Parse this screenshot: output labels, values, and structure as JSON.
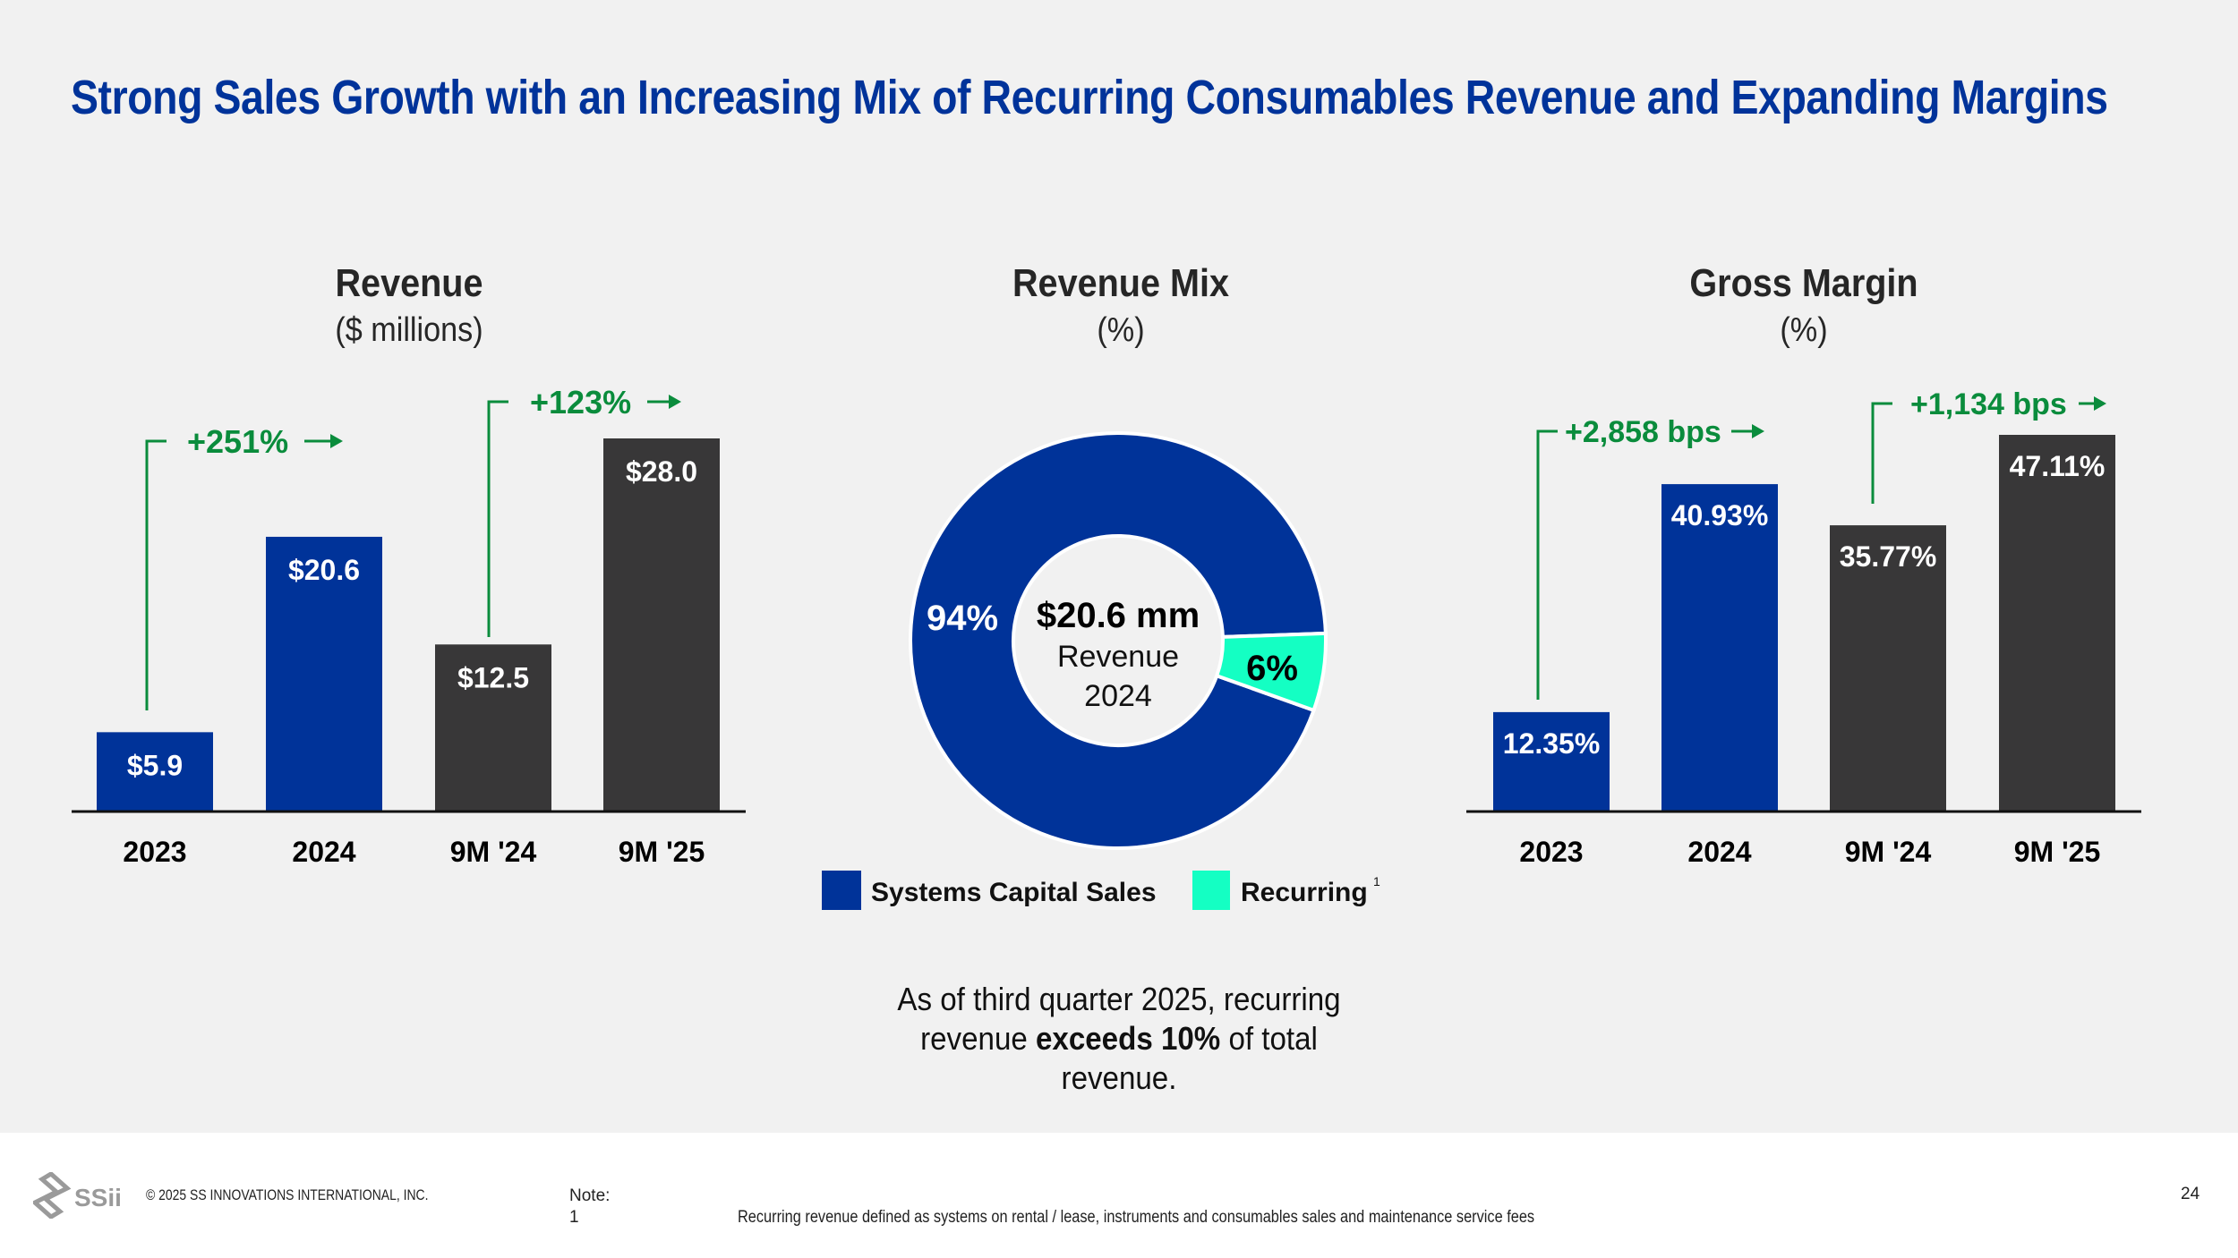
{
  "title": "Strong Sales Growth with an Increasing Mix of Recurring Consumables Revenue and Expanding Margins",
  "colors": {
    "title": "#00339a",
    "blue_bar": "#003399",
    "dark_bar": "#383738",
    "recurring": "#14ffc3",
    "growth_green": "#0a8c3c",
    "background": "#f1f1f1"
  },
  "panels": {
    "revenue": {
      "title": "Revenue",
      "subtitle": "($ millions)"
    },
    "mix": {
      "title": "Revenue Mix",
      "subtitle": "(%)"
    },
    "margin": {
      "title": "Gross Margin",
      "subtitle": "(%)"
    }
  },
  "chart_data": [
    {
      "type": "bar",
      "title": "Revenue",
      "subtitle": "($ millions)",
      "categories": [
        "2023",
        "2024",
        "9M '24",
        "9M '25"
      ],
      "values": [
        5.9,
        20.6,
        12.5,
        28.0
      ],
      "labels": [
        "$5.9",
        "$20.6",
        "$12.5",
        "$28.0"
      ],
      "bar_colors": [
        "#003399",
        "#003399",
        "#383738",
        "#383738"
      ],
      "ylim": [
        0,
        28.0
      ],
      "annotations": [
        {
          "text": "+251%",
          "from": "2023",
          "to": "2024"
        },
        {
          "text": "+123%",
          "from": "9M '24",
          "to": "9M '25"
        }
      ],
      "grid": false
    },
    {
      "type": "pie",
      "title": "Revenue Mix",
      "subtitle": "(%)",
      "donut": true,
      "center_text": {
        "value": "$20.6 mm",
        "line1": "Revenue",
        "line2": "2024"
      },
      "slices": [
        {
          "name": "Systems Capital Sales",
          "value": 94,
          "label": "94%",
          "color": "#003399"
        },
        {
          "name": "Recurring",
          "value": 6,
          "label": "6%",
          "color": "#14ffc3",
          "footnote": "1"
        }
      ],
      "legend": "bottom"
    },
    {
      "type": "bar",
      "title": "Gross Margin",
      "subtitle": "(%)",
      "categories": [
        "2023",
        "2024",
        "9M '24",
        "9M '25"
      ],
      "values": [
        12.35,
        40.93,
        35.77,
        47.11
      ],
      "labels": [
        "12.35%",
        "40.93%",
        "35.77%",
        "47.11%"
      ],
      "bar_colors": [
        "#003399",
        "#003399",
        "#383738",
        "#383738"
      ],
      "ylim": [
        0,
        47.11
      ],
      "annotations": [
        {
          "text": "+2,858 bps",
          "from": "2023",
          "to": "2024"
        },
        {
          "text": "+1,134 bps",
          "from": "9M '24",
          "to": "9M '25"
        }
      ],
      "grid": false
    }
  ],
  "callout": {
    "part1": "As of third quarter 2025, recurring revenue ",
    "bold": "exceeds 10%",
    "part2": " of total revenue."
  },
  "footer": {
    "logo_text": "SSii",
    "copyright": "© 2025 SS INNOVATIONS INTERNATIONAL, INC.",
    "note_label": "Note:",
    "note_number": "1",
    "note_text": "Recurring revenue defined as systems on rental / lease, instruments and consumables sales and maintenance service fees",
    "page_number": "24"
  }
}
